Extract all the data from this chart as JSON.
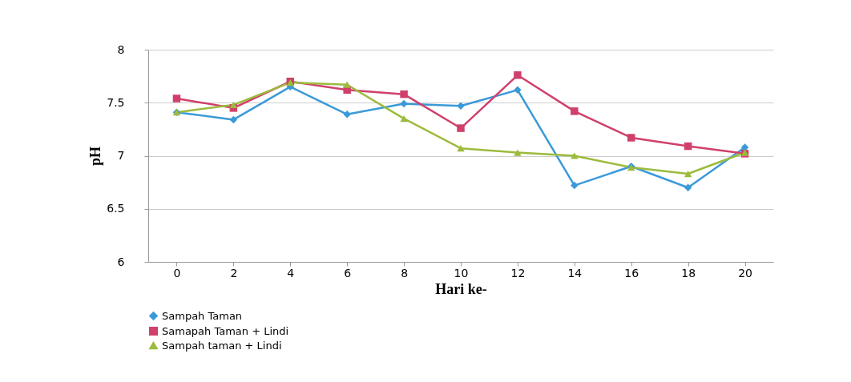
{
  "chart_data": {
    "type": "line",
    "xlabel": "Hari ke-",
    "ylabel": "pH",
    "categories": [
      "0",
      "2",
      "4",
      "6",
      "8",
      "10",
      "12",
      "14",
      "16",
      "18",
      "20"
    ],
    "series": [
      {
        "name": "Sampah Taman",
        "color": "#3a9ad9",
        "marker": "diamond",
        "values": [
          7.41,
          7.34,
          7.65,
          7.39,
          7.49,
          7.47,
          7.62,
          6.72,
          6.9,
          6.7,
          7.08
        ]
      },
      {
        "name": "Samapah Taman + Lindi",
        "color": "#d0406a",
        "marker": "square",
        "values": [
          7.54,
          7.45,
          7.7,
          7.62,
          7.58,
          7.26,
          7.76,
          7.42,
          7.17,
          7.09,
          7.02
        ]
      },
      {
        "name": "Sampah taman + Lindi",
        "color": "#9cbb3c",
        "marker": "triangle",
        "values": [
          7.41,
          7.48,
          7.69,
          7.67,
          7.35,
          7.07,
          7.03,
          7.0,
          6.89,
          6.83,
          7.03
        ]
      }
    ],
    "ylim": [
      6,
      8
    ],
    "yticks": [
      6,
      6.5,
      7,
      7.5,
      8
    ],
    "grid": "y",
    "legend": "bottom",
    "line_style": "solid"
  }
}
